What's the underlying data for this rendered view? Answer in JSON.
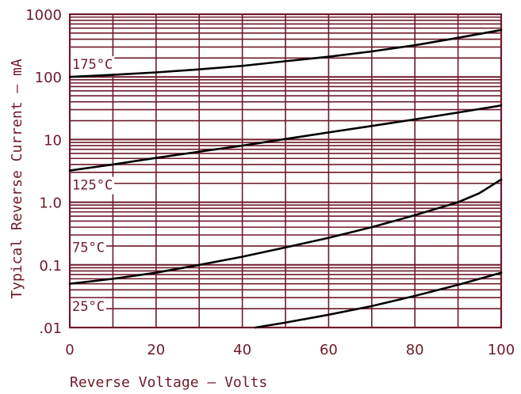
{
  "chart_data": {
    "type": "line",
    "title": "",
    "xlabel": "Reverse Voltage — Volts",
    "ylabel": "Typical Reverse Current – mA",
    "x_scale": "linear",
    "y_scale": "log",
    "xlim": [
      0,
      100
    ],
    "ylim": [
      0.01,
      1000
    ],
    "grid": true,
    "x_ticks": [
      {
        "value": 0,
        "label": "0"
      },
      {
        "value": 20,
        "label": "20"
      },
      {
        "value": 40,
        "label": "40"
      },
      {
        "value": 60,
        "label": "60"
      },
      {
        "value": 80,
        "label": "80"
      },
      {
        "value": 100,
        "label": "100"
      }
    ],
    "y_ticks": [
      {
        "value": 0.01,
        "label": ".01"
      },
      {
        "value": 0.1,
        "label": "0.1"
      },
      {
        "value": 1,
        "label": "1.0"
      },
      {
        "value": 10,
        "label": "10"
      },
      {
        "value": 100,
        "label": "100"
      },
      {
        "value": 1000,
        "label": "1000"
      }
    ],
    "series": [
      {
        "name": "175°C",
        "label_at": [
          0,
          160
        ],
        "x": [
          0,
          10,
          20,
          30,
          40,
          50,
          60,
          70,
          80,
          90,
          100
        ],
        "y": [
          100,
          108,
          118,
          132,
          150,
          178,
          210,
          255,
          320,
          420,
          560
        ]
      },
      {
        "name": "125°C",
        "label_at": [
          0,
          1.9
        ],
        "x": [
          0,
          10,
          20,
          30,
          40,
          50,
          60,
          70,
          80,
          90,
          100
        ],
        "y": [
          3.2,
          4.0,
          5.1,
          6.4,
          8.0,
          10.2,
          13.0,
          16.5,
          21,
          27,
          35
        ]
      },
      {
        "name": "75°C",
        "label_at": [
          0,
          0.19
        ],
        "x": [
          0,
          10,
          20,
          30,
          40,
          50,
          60,
          70,
          80,
          90,
          95,
          100
        ],
        "y": [
          0.05,
          0.06,
          0.075,
          0.1,
          0.135,
          0.19,
          0.27,
          0.4,
          0.62,
          1.0,
          1.4,
          2.3
        ]
      },
      {
        "name": "25°C",
        "label_at": [
          0,
          0.022
        ],
        "x": [
          43,
          50,
          60,
          70,
          80,
          90,
          100
        ],
        "y": [
          0.01,
          0.012,
          0.016,
          0.022,
          0.032,
          0.048,
          0.075
        ]
      }
    ]
  }
}
